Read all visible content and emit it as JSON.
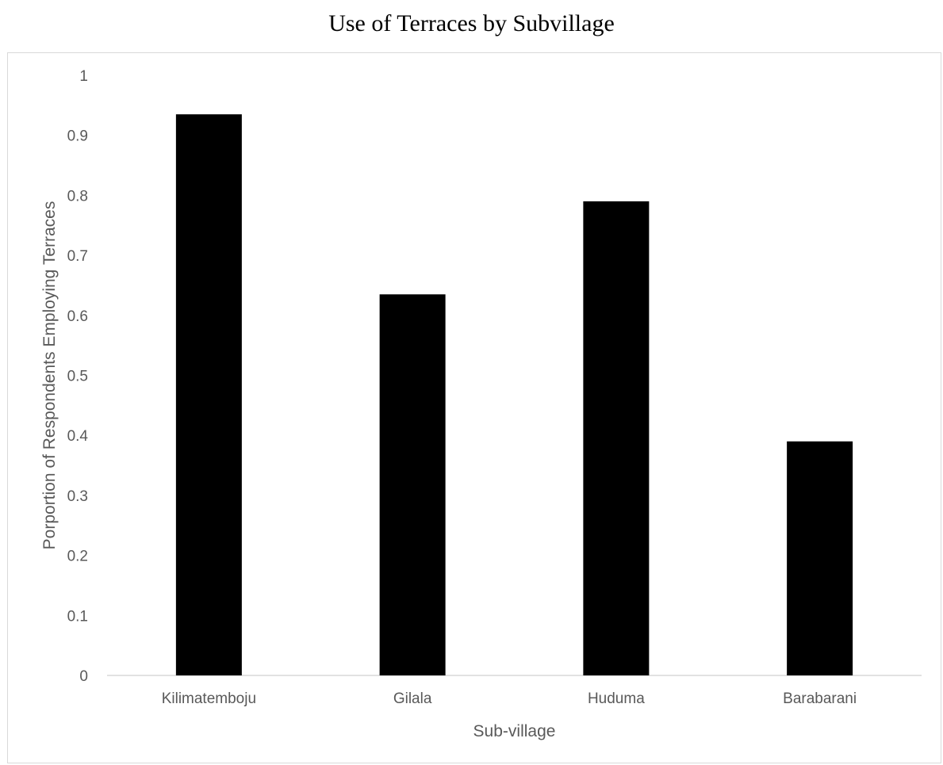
{
  "chart_data": {
    "type": "bar",
    "title": "Use of Terraces by Subvillage",
    "xlabel": "Sub-village",
    "ylabel": "Porportion of Respondents Employing Terraces",
    "categories": [
      "Kilimatemboju",
      "Gilala",
      "Huduma",
      "Barabarani"
    ],
    "values": [
      0.935,
      0.635,
      0.79,
      0.39
    ],
    "ylim": [
      0,
      1
    ],
    "yticks": [
      "0",
      "0.1",
      "0.2",
      "0.3",
      "0.4",
      "0.5",
      "0.6",
      "0.7",
      "0.8",
      "0.9",
      "1"
    ],
    "grid": false,
    "legend": "none",
    "bar_color": "#000000",
    "axis_color": "#d9d9d9"
  }
}
